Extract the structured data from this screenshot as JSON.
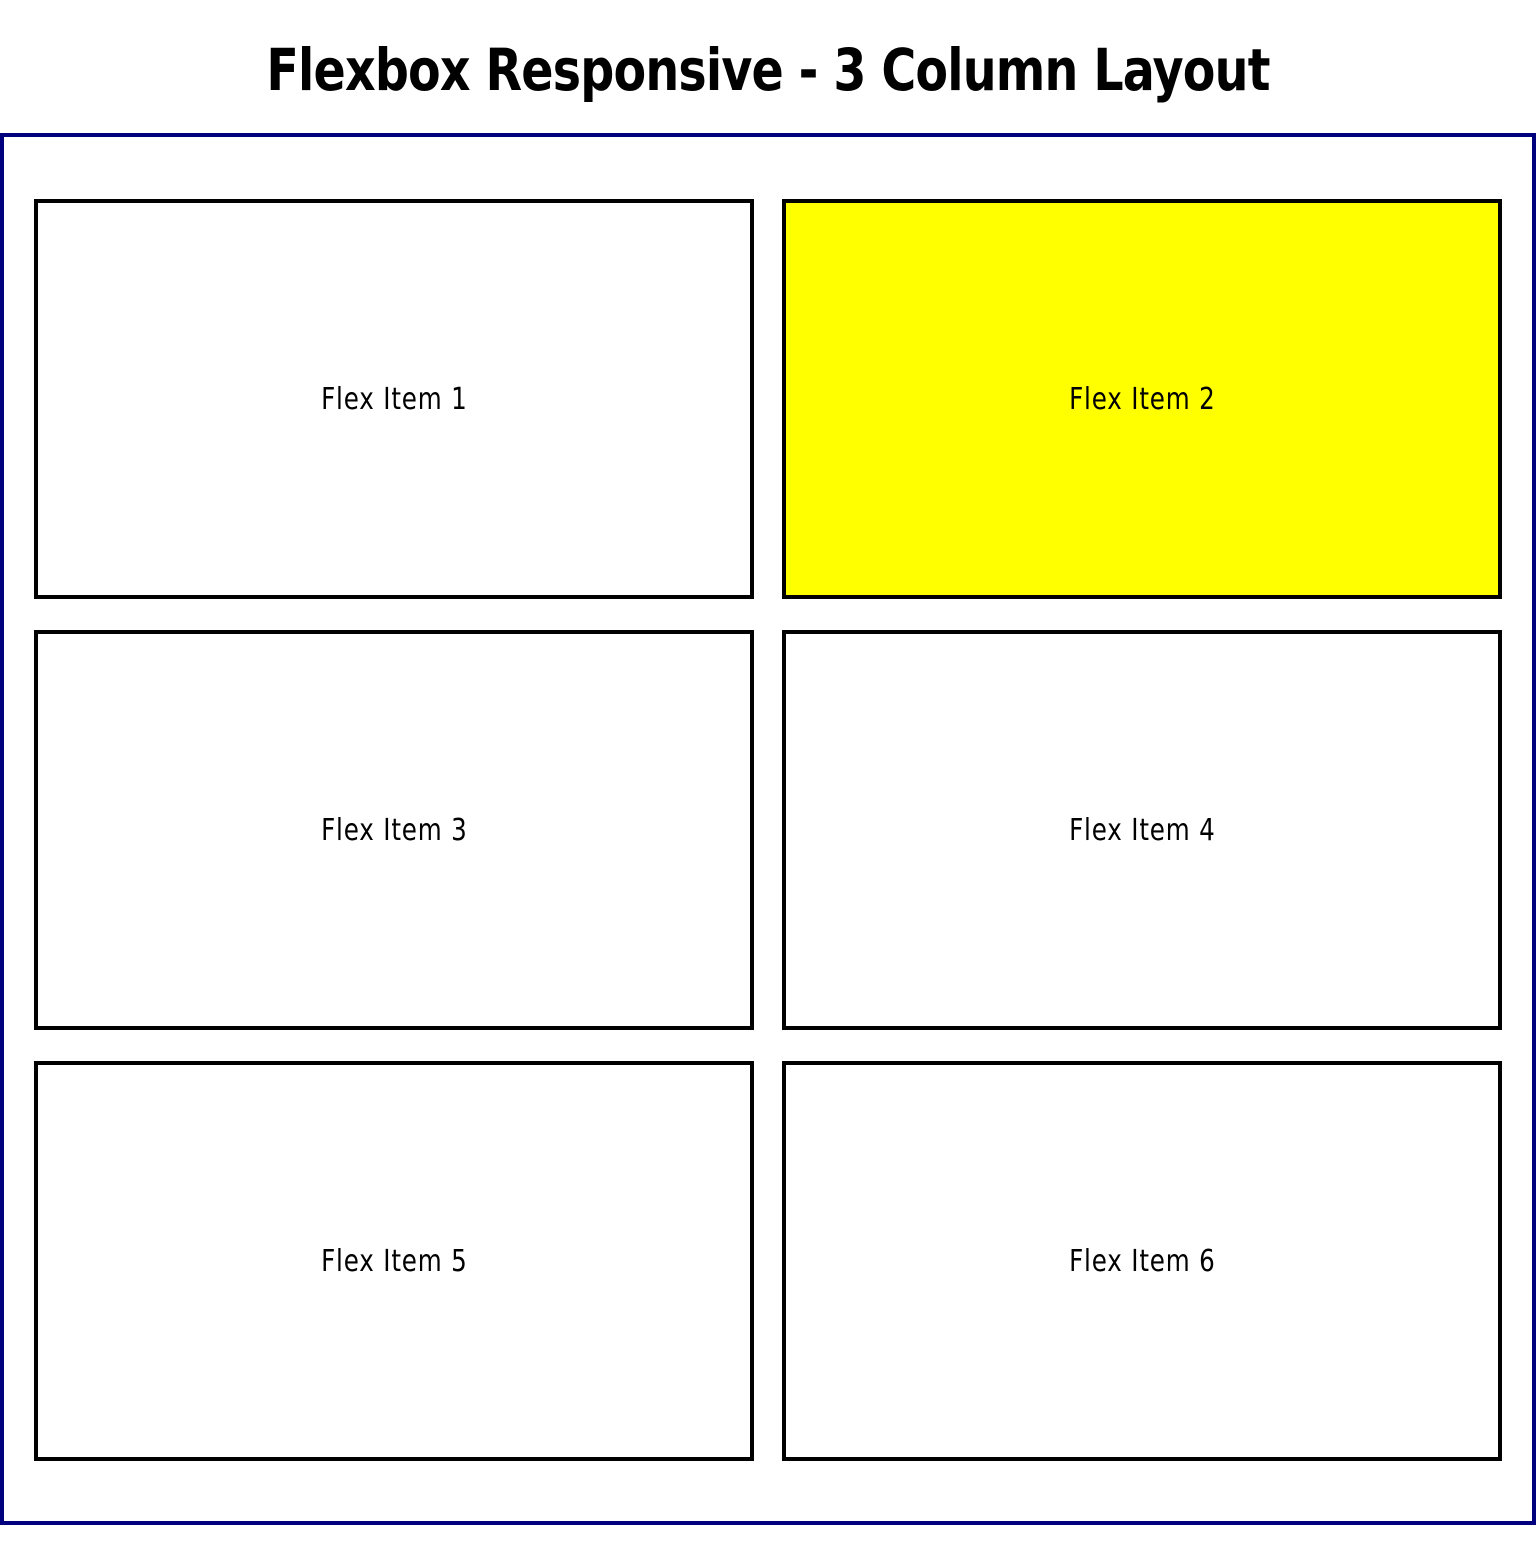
{
  "page": {
    "title": "Flexbox Responsive - 3 Column Layout"
  },
  "colors": {
    "container_border": "#00007f",
    "item_border": "#000000",
    "item_background": "#ffffff",
    "highlight_background": "#ffff00",
    "text": "#000000"
  },
  "items": [
    {
      "label": "Flex Item 1",
      "highlighted": false
    },
    {
      "label": "Flex Item 2",
      "highlighted": true
    },
    {
      "label": "Flex Item 3",
      "highlighted": false
    },
    {
      "label": "Flex Item 4",
      "highlighted": false
    },
    {
      "label": "Flex Item 5",
      "highlighted": false
    },
    {
      "label": "Flex Item 6",
      "highlighted": false
    }
  ]
}
